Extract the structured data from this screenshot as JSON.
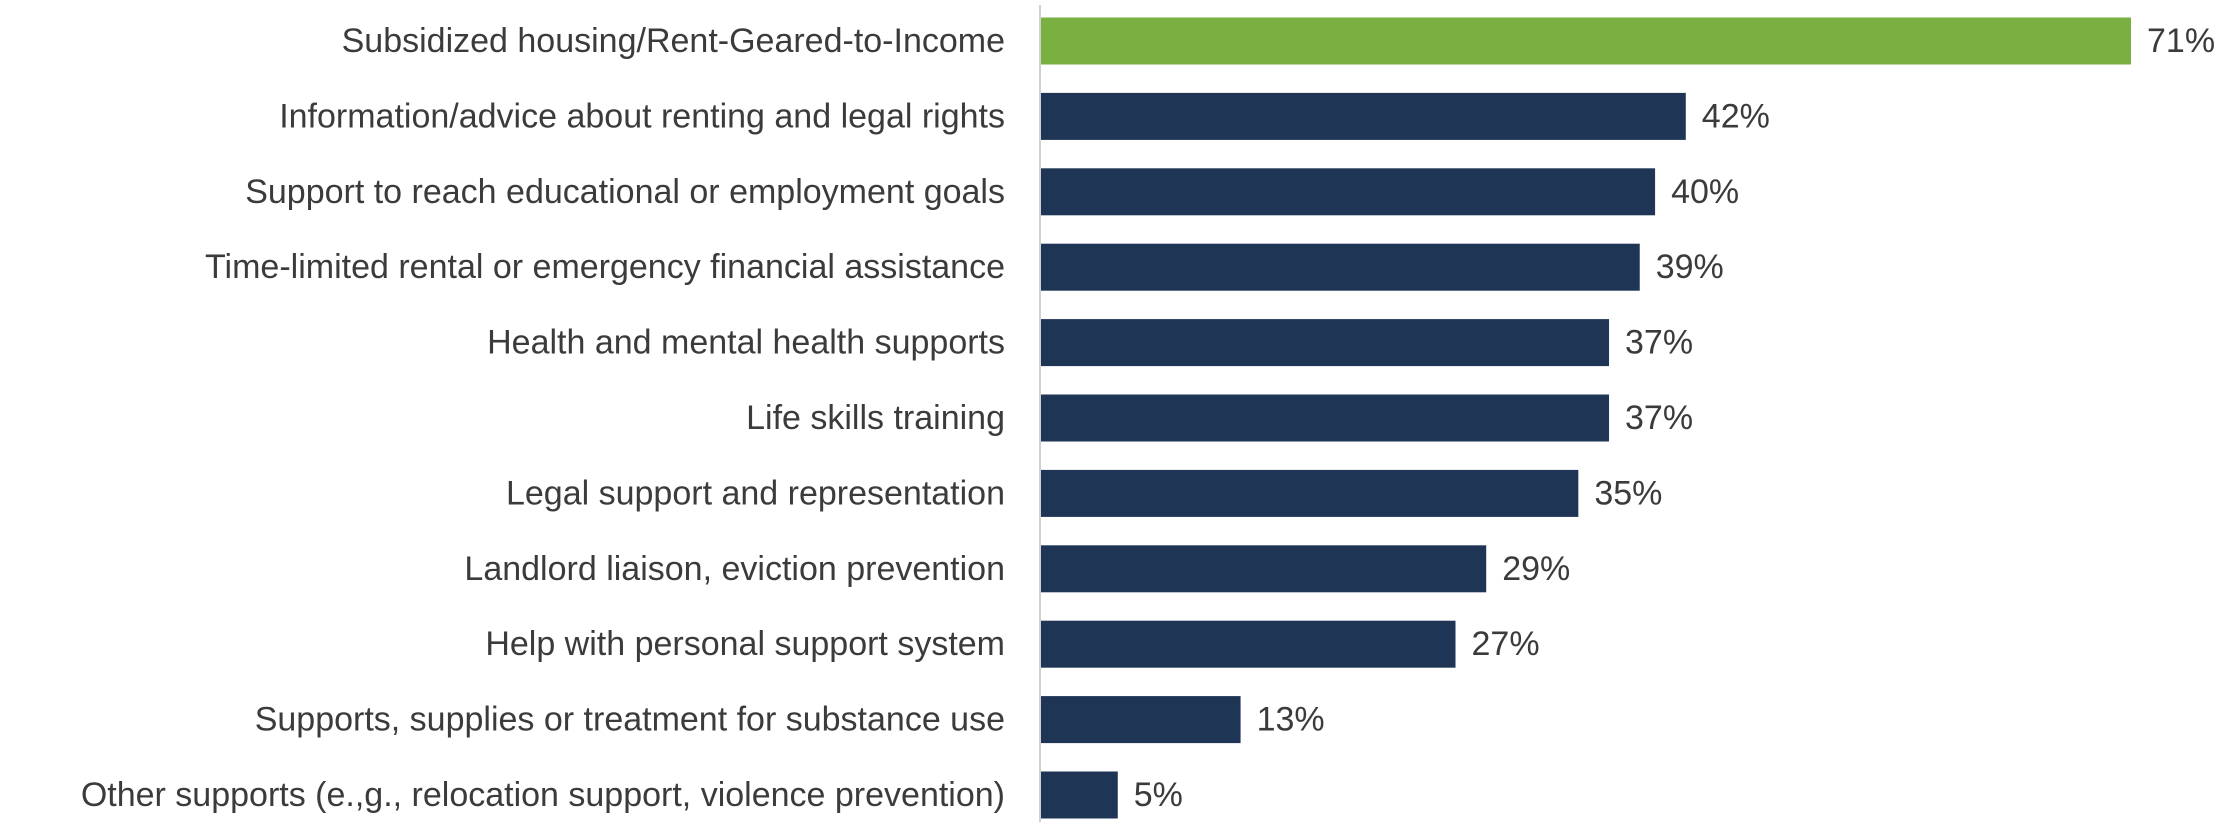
{
  "chart_data": {
    "type": "bar",
    "orientation": "horizontal",
    "categories": [
      "Subsidized housing/Rent-Geared-to-Income",
      "Information/advice about renting and legal rights",
      "Support to reach educational or employment goals",
      "Time-limited rental or emergency financial assistance",
      "Health and mental health supports",
      "Life skills training",
      "Legal support and representation",
      "Landlord liaison, eviction prevention",
      "Help with personal support system",
      "Supports, supplies or treatment for substance use",
      "Other supports (e.,g., relocation support, violence prevention)"
    ],
    "values": [
      71,
      42,
      40,
      39,
      37,
      37,
      35,
      29,
      27,
      13,
      5
    ],
    "value_labels": [
      "71%",
      "42%",
      "40%",
      "39%",
      "37%",
      "37%",
      "35%",
      "29%",
      "27%",
      "13%",
      "5%"
    ],
    "title": "",
    "xlabel": "",
    "ylabel": "",
    "xlim": [
      0,
      71
    ],
    "grid": false,
    "legend": "none",
    "colors": {
      "highlight": "#7aaf41",
      "default": "#1f3556",
      "axis": "#d0d0d0",
      "text": "#3b3b3b"
    },
    "highlight_index": 0
  }
}
